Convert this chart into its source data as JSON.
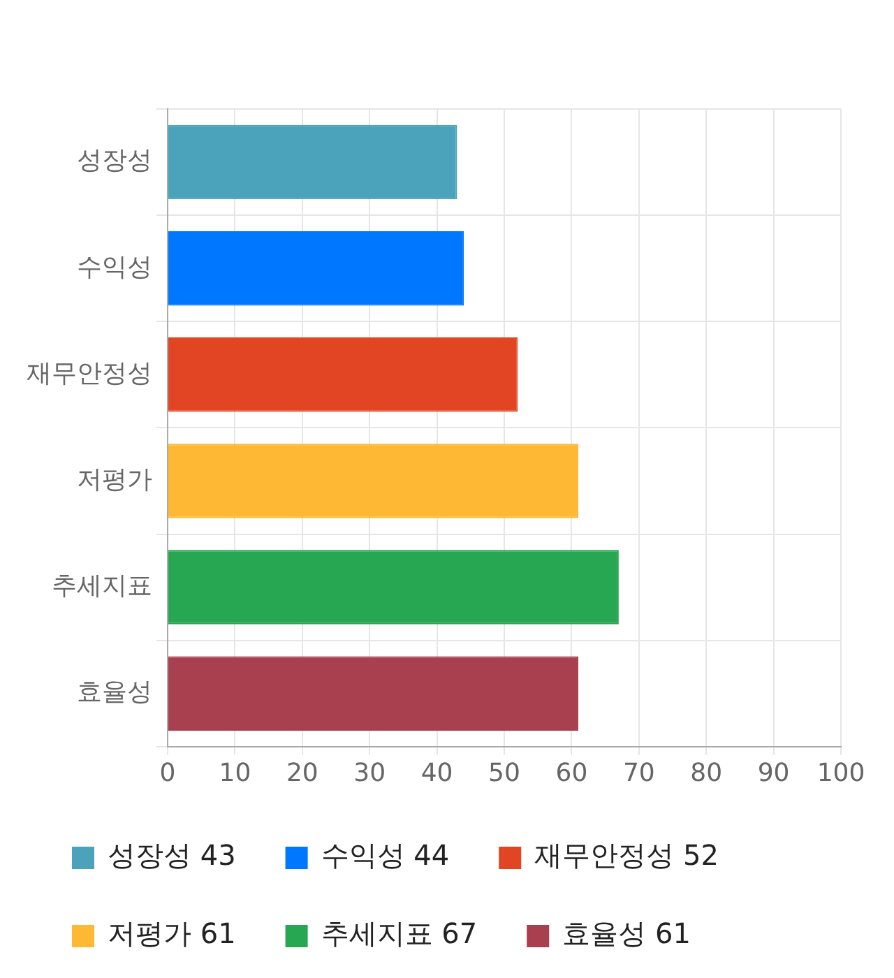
{
  "chart_data": {
    "type": "bar",
    "orientation": "horizontal",
    "stacked": true,
    "categories": [
      "성장성",
      "수익성",
      "재무안정성",
      "저평가",
      "추세지표",
      "효율성"
    ],
    "series": [
      {
        "name": "성장성 43",
        "color": "#4aa3ba",
        "values": [
          43,
          null,
          null,
          null,
          null,
          null
        ]
      },
      {
        "name": "수익성 44",
        "color": "#0077ff",
        "values": [
          null,
          44,
          null,
          null,
          null,
          null
        ]
      },
      {
        "name": "재무안정성 52",
        "color": "#e24524",
        "values": [
          null,
          null,
          52,
          null,
          null,
          null
        ]
      },
      {
        "name": "저평가 61",
        "color": "#ffb833",
        "values": [
          null,
          null,
          null,
          61,
          null,
          null
        ]
      },
      {
        "name": "추세지표 67",
        "color": "#28a753",
        "values": [
          null,
          null,
          null,
          null,
          67,
          null
        ]
      },
      {
        "name": "효율성 61",
        "color": "#a8404f",
        "values": [
          null,
          null,
          null,
          null,
          null,
          61
        ]
      }
    ],
    "xlim": [
      0,
      100
    ],
    "xticks": [
      0,
      10,
      20,
      30,
      40,
      50,
      60,
      70,
      80,
      90,
      100
    ],
    "grid": true,
    "legend": "bottom"
  }
}
